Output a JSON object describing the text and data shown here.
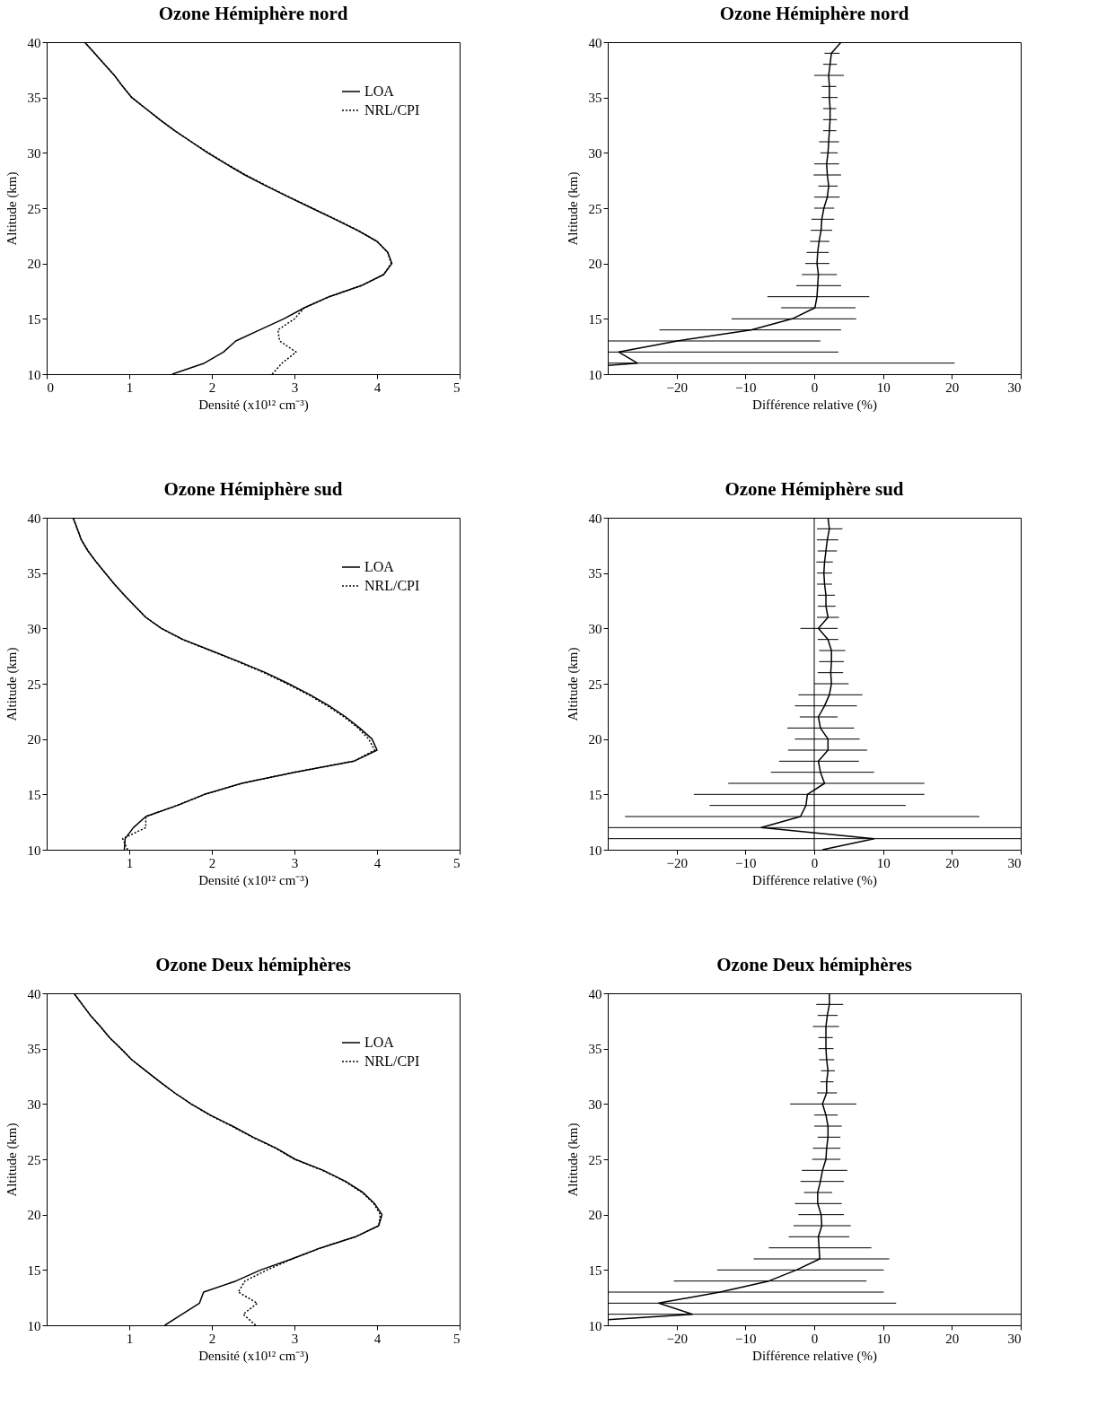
{
  "chart_data": [
    {
      "type": "line",
      "title": "Ozone Hémiphère nord",
      "xlabel": "Densité (x10¹² cm⁻³)",
      "ylabel": "Altitude (km)",
      "xlim": [
        0,
        5
      ],
      "xticks": [
        0,
        1,
        2,
        3,
        4,
        5
      ],
      "ylim": [
        10,
        40
      ],
      "yticks": [
        10,
        15,
        20,
        25,
        30,
        35,
        40
      ],
      "grid": false,
      "legend": "top right",
      "series": [
        {
          "name": "LOA",
          "color": "#000000",
          "line_style": "solid",
          "x": [
            1.52,
            1.91,
            2.14,
            2.29,
            2.58,
            2.87,
            3.12,
            3.42,
            3.81,
            4.08,
            4.18,
            4.13,
            4.0,
            3.76,
            3.49,
            3.21,
            2.93,
            2.66,
            2.4,
            2.17,
            1.95,
            1.75,
            1.55,
            1.37,
            1.2,
            1.03,
            0.92,
            0.82,
            0.7,
            0.58,
            0.46
          ],
          "values": [
            10,
            11,
            12,
            13,
            14,
            15,
            16,
            17,
            18,
            19,
            20,
            21,
            22,
            23,
            24,
            25,
            26,
            27,
            28,
            29,
            30,
            31,
            32,
            33,
            34,
            35,
            36,
            37,
            38,
            39,
            40
          ]
        },
        {
          "name": "NRL/CPI",
          "color": "#000000",
          "line_style": "dotted",
          "x": [
            2.73,
            2.85,
            3.02,
            2.82,
            2.8,
            3.0,
            3.12,
            3.42,
            3.81,
            4.08,
            4.17,
            4.13,
            4.0,
            3.77,
            3.5,
            3.22,
            2.94,
            2.67,
            2.41,
            2.18,
            1.96,
            1.75,
            1.55,
            1.37,
            1.2,
            1.03,
            0.92,
            0.82,
            0.7,
            0.58,
            0.46
          ],
          "values": [
            10,
            11,
            12,
            13,
            14,
            15,
            16,
            17,
            18,
            19,
            20,
            21,
            22,
            23,
            24,
            25,
            26,
            27,
            28,
            29,
            30,
            31,
            32,
            33,
            34,
            35,
            36,
            37,
            38,
            39,
            40
          ]
        }
      ]
    },
    {
      "type": "line",
      "title": "Ozone Hémiphère nord",
      "xlabel": "Différence relative (%)",
      "ylabel": "Altitude (km)",
      "xlim": [
        -30,
        30
      ],
      "xticks": [
        -20,
        -10,
        0,
        10,
        20,
        30
      ],
      "ylim": [
        10,
        40
      ],
      "yticks": [
        10,
        15,
        20,
        25,
        30,
        35,
        40
      ],
      "grid": false,
      "series": [
        {
          "color": "#000000",
          "line_style": "solid",
          "x": [
            -30,
            -25.7,
            -28.4,
            -19.9,
            -9.2,
            -3.2,
            0.1,
            0.4,
            0.5,
            0.6,
            0.4,
            0.5,
            0.7,
            1.0,
            1.1,
            1.4,
            1.9,
            2.1,
            1.9,
            1.8,
            2.0,
            2.1,
            2.2,
            2.3,
            2.3,
            2.2,
            2.2,
            2.1,
            2.3,
            2.5,
            3.9
          ],
          "values": [
            10.8,
            11,
            12,
            13,
            14,
            15,
            16,
            17,
            18,
            19,
            20,
            21,
            22,
            23,
            24,
            25,
            26,
            27,
            28,
            29,
            30,
            31,
            32,
            33,
            34,
            35,
            36,
            37,
            38,
            39,
            40
          ],
          "xerrors": [
            null,
            [
              -30,
              20.4
            ],
            [
              -30,
              3.5
            ],
            [
              -30,
              0.9
            ],
            [
              -22.5,
              3.9
            ],
            [
              -12,
              6.1
            ],
            [
              -4.8,
              6.0
            ],
            [
              -6.8,
              8.0
            ],
            [
              -2.6,
              3.9
            ],
            [
              -1.8,
              3.3
            ],
            [
              -1.3,
              2.2
            ],
            [
              -1.1,
              2.1
            ],
            [
              -0.6,
              2.2
            ],
            [
              -0.5,
              2.6
            ],
            [
              -0.4,
              2.9
            ],
            [
              0,
              2.9
            ],
            [
              0,
              3.7
            ],
            [
              0.6,
              3.4
            ],
            [
              -0.1,
              3.9
            ],
            [
              0,
              3.6
            ],
            [
              0.9,
              3.4
            ],
            [
              0.7,
              3.6
            ],
            [
              1.3,
              3.2
            ],
            [
              1.3,
              3.3
            ],
            [
              1.3,
              3.2
            ],
            [
              1.1,
              3.4
            ],
            [
              1.1,
              3.2
            ],
            [
              0,
              4.3
            ],
            [
              1.3,
              3.3
            ],
            [
              1.5,
              3.7
            ],
            null
          ]
        }
      ]
    },
    {
      "type": "line",
      "title": "Ozone Hémiphère sud",
      "xlabel": "Densité (x10¹² cm⁻³)",
      "ylabel": "Altitude (km)",
      "xlim": [
        0,
        5
      ],
      "xticks": [
        1,
        2,
        3,
        4,
        5
      ],
      "ylim": [
        10,
        40
      ],
      "yticks": [
        10,
        15,
        20,
        25,
        30,
        35,
        40
      ],
      "grid": false,
      "legend": "top right",
      "series": [
        {
          "name": "LOA",
          "color": "#000000",
          "line_style": "solid",
          "x": [
            0.94,
            0.95,
            1.05,
            1.2,
            1.58,
            1.91,
            2.36,
            3.0,
            3.72,
            4.0,
            3.94,
            3.79,
            3.62,
            3.42,
            3.19,
            2.93,
            2.65,
            2.33,
            1.99,
            1.65,
            1.39,
            1.2,
            1.07,
            0.94,
            0.82,
            0.71,
            0.6,
            0.5,
            0.42,
            0.37,
            0.32
          ],
          "values": [
            10,
            11,
            12,
            13,
            14,
            15,
            16,
            17,
            18,
            19,
            20,
            21,
            22,
            23,
            24,
            25,
            26,
            27,
            28,
            29,
            30,
            31,
            32,
            33,
            34,
            35,
            36,
            37,
            38,
            39,
            40
          ]
        },
        {
          "name": "NRL/CPI",
          "color": "#000000",
          "line_style": "dotted",
          "x": [
            0.98,
            0.92,
            1.2,
            1.2,
            1.58,
            1.91,
            2.36,
            3.0,
            3.72,
            3.97,
            3.9,
            3.77,
            3.6,
            3.4,
            3.17,
            2.91,
            2.63,
            2.31,
            1.98,
            1.64,
            1.39,
            1.2,
            1.07,
            0.94,
            0.82,
            0.71,
            0.6,
            0.5,
            0.42,
            0.37,
            0.32
          ],
          "values": [
            10,
            11,
            12,
            13,
            14,
            15,
            16,
            17,
            18,
            19,
            20,
            21,
            22,
            23,
            24,
            25,
            26,
            27,
            28,
            29,
            30,
            31,
            32,
            33,
            34,
            35,
            36,
            37,
            38,
            39,
            40
          ]
        }
      ]
    },
    {
      "type": "line",
      "title": "Ozone Hémiphère sud",
      "xlabel": "Différence relative (%)",
      "ylabel": "Altitude (km)",
      "xlim": [
        -30,
        30
      ],
      "xticks": [
        -20,
        -10,
        0,
        10,
        20,
        30
      ],
      "ylim": [
        10,
        40
      ],
      "yticks": [
        10,
        15,
        20,
        25,
        30,
        35,
        40
      ],
      "grid": false,
      "ref_lines": [
        {
          "axis": "x",
          "value": 0,
          "color": "#000000"
        }
      ],
      "series": [
        {
          "color": "#000000",
          "line_style": "solid",
          "x": [
            1.2,
            8.7,
            -7.7,
            -2.0,
            -1.2,
            -1.0,
            1.5,
            0.9,
            0.6,
            2.0,
            2.0,
            0.9,
            0.6,
            1.5,
            2.2,
            2.5,
            2.4,
            2.5,
            2.5,
            2.0,
            0.6,
            2.0,
            1.7,
            1.7,
            1.5,
            1.4,
            1.5,
            1.7,
            1.9,
            2.2,
            2.0
          ],
          "values": [
            10,
            11,
            12,
            13,
            14,
            15,
            16,
            17,
            18,
            19,
            20,
            21,
            22,
            23,
            24,
            25,
            26,
            27,
            28,
            29,
            30,
            31,
            32,
            33,
            34,
            35,
            36,
            37,
            38,
            39,
            40
          ],
          "xerrors": [
            null,
            [
              -30,
              30
            ],
            [
              -30,
              30
            ],
            [
              -27.5,
              24
            ],
            [
              -15.2,
              13.3
            ],
            [
              -17.5,
              16
            ],
            [
              -12.5,
              16
            ],
            [
              -6.3,
              8.7
            ],
            [
              -5.1,
              6.5
            ],
            [
              -3.8,
              7.7
            ],
            [
              -2.8,
              6.6
            ],
            [
              -3.9,
              5.8
            ],
            [
              -2.1,
              3.4
            ],
            [
              -2.8,
              6.2
            ],
            [
              -2.3,
              7
            ],
            [
              0,
              5
            ],
            [
              0.5,
              4.2
            ],
            [
              0.7,
              4.3
            ],
            [
              0.7,
              4.5
            ],
            [
              0.5,
              3.5
            ],
            [
              -2.0,
              3.4
            ],
            [
              0.4,
              3.6
            ],
            [
              0.5,
              3.1
            ],
            [
              0.5,
              3.0
            ],
            [
              0.4,
              2.6
            ],
            [
              0.4,
              2.6
            ],
            [
              0.3,
              2.7
            ],
            [
              0.5,
              3.3
            ],
            [
              0.4,
              3.5
            ],
            [
              0.4,
              4.1
            ],
            null
          ]
        }
      ]
    },
    {
      "type": "line",
      "title": "Ozone Deux hémiphères",
      "xlabel": "Densité (x10¹² cm⁻³)",
      "ylabel": "Altitude (km)",
      "xlim": [
        0,
        5
      ],
      "xticks": [
        1,
        2,
        3,
        4,
        5
      ],
      "ylim": [
        10,
        40
      ],
      "yticks": [
        10,
        15,
        20,
        25,
        30,
        35,
        40
      ],
      "grid": false,
      "legend": "top right",
      "series": [
        {
          "name": "LOA",
          "color": "#000000",
          "line_style": "solid",
          "x": [
            1.43,
            1.64,
            1.85,
            1.9,
            2.29,
            2.59,
            2.97,
            3.32,
            3.74,
            4.02,
            4.06,
            3.97,
            3.83,
            3.62,
            3.35,
            3.01,
            2.78,
            2.5,
            2.25,
            1.98,
            1.75,
            1.55,
            1.37,
            1.2,
            1.03,
            0.9,
            0.76,
            0.65,
            0.53,
            0.43,
            0.33
          ],
          "values": [
            10,
            11,
            12,
            13,
            14,
            15,
            16,
            17,
            18,
            19,
            20,
            21,
            22,
            23,
            24,
            25,
            26,
            27,
            28,
            29,
            30,
            31,
            32,
            33,
            34,
            35,
            36,
            37,
            38,
            39,
            40
          ]
        },
        {
          "name": "NRL/CPI",
          "color": "#000000",
          "line_style": "dotted",
          "x": [
            2.53,
            2.38,
            2.55,
            2.32,
            2.4,
            2.67,
            2.97,
            3.32,
            3.74,
            4.02,
            4.04,
            3.96,
            3.82,
            3.61,
            3.34,
            3.0,
            2.77,
            2.49,
            2.24,
            1.97,
            1.75,
            1.55,
            1.37,
            1.2,
            1.03,
            0.9,
            0.76,
            0.65,
            0.53,
            0.43,
            0.33
          ],
          "values": [
            10,
            11,
            12,
            13,
            14,
            15,
            16,
            17,
            18,
            19,
            20,
            21,
            22,
            23,
            24,
            25,
            26,
            27,
            28,
            29,
            30,
            31,
            32,
            33,
            34,
            35,
            36,
            37,
            38,
            39,
            40
          ]
        }
      ]
    },
    {
      "type": "line",
      "title": "Ozone Deux hémiphères",
      "xlabel": "Différence relative (%)",
      "ylabel": "Altitude (km)",
      "xlim": [
        -30,
        30
      ],
      "xticks": [
        -20,
        -10,
        0,
        10,
        20,
        30
      ],
      "ylim": [
        10,
        40
      ],
      "yticks": [
        10,
        15,
        20,
        25,
        30,
        35,
        40
      ],
      "grid": false,
      "series": [
        {
          "color": "#000000",
          "line_style": "solid",
          "x": [
            -30,
            -17.7,
            -22.6,
            -13.7,
            -6.6,
            -2.6,
            0.8,
            0.7,
            0.6,
            1.1,
            1.0,
            0.5,
            0.5,
            0.9,
            1.2,
            1.7,
            1.8,
            2.0,
            2.0,
            1.7,
            1.2,
            1.8,
            1.8,
            2.0,
            1.8,
            1.7,
            1.7,
            1.7,
            1.9,
            2.2,
            2.2
          ],
          "values": [
            10.5,
            11,
            12,
            13,
            14,
            15,
            16,
            17,
            18,
            19,
            20,
            21,
            22,
            23,
            24,
            25,
            26,
            27,
            28,
            29,
            30,
            31,
            32,
            33,
            34,
            35,
            36,
            37,
            38,
            39,
            40
          ],
          "xerrors": [
            null,
            [
              -30,
              30
            ],
            [
              -30,
              11.9
            ],
            [
              -30,
              10.1
            ],
            [
              -20.4,
              7.6
            ],
            [
              -14.1,
              10.1
            ],
            [
              -8.8,
              10.9
            ],
            [
              -6.6,
              8.3
            ],
            [
              -3.7,
              5.1
            ],
            [
              -3,
              5.3
            ],
            [
              -2.3,
              4.3
            ],
            [
              -2.8,
              4
            ],
            [
              -1.5,
              2.6
            ],
            [
              -2,
              4.3
            ],
            [
              -1.8,
              4.8
            ],
            [
              -0.3,
              3.8
            ],
            [
              -0.2,
              3.8
            ],
            [
              0.5,
              3.8
            ],
            [
              0,
              4
            ],
            [
              0,
              3.4
            ],
            [
              -3.5,
              6.1
            ],
            [
              0.4,
              3.3
            ],
            [
              0.9,
              2.8
            ],
            [
              1.0,
              3.0
            ],
            [
              0.7,
              2.9
            ],
            [
              0.6,
              2.8
            ],
            [
              0.6,
              2.7
            ],
            [
              -0.2,
              3.6
            ],
            [
              0.5,
              3.4
            ],
            [
              0.3,
              4.2
            ],
            null
          ]
        }
      ]
    }
  ]
}
